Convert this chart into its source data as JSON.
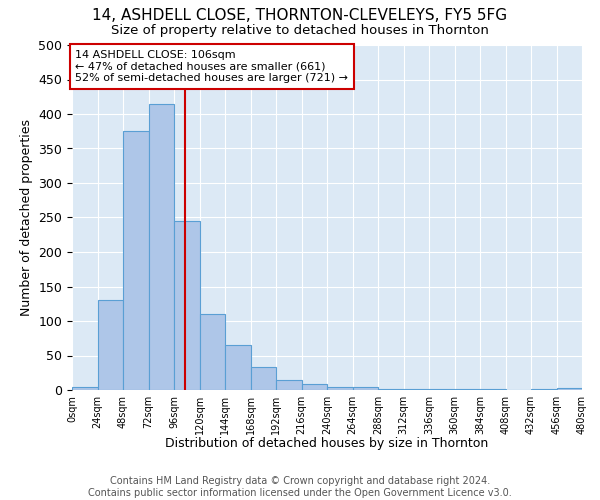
{
  "title": "14, ASHDELL CLOSE, THORNTON-CLEVELEYS, FY5 5FG",
  "subtitle": "Size of property relative to detached houses in Thornton",
  "xlabel": "Distribution of detached houses by size in Thornton",
  "ylabel": "Number of detached properties",
  "bin_edges": [
    0,
    24,
    48,
    72,
    96,
    120,
    144,
    168,
    192,
    216,
    240,
    264,
    288,
    312,
    336,
    360,
    384,
    408,
    432,
    456,
    480
  ],
  "bar_heights": [
    5,
    130,
    375,
    415,
    245,
    110,
    65,
    33,
    15,
    8,
    5,
    4,
    2,
    1,
    1,
    1,
    1,
    0,
    1,
    3
  ],
  "bar_color": "#aec6e8",
  "bar_edge_color": "#5a9fd4",
  "vline_x": 106,
  "vline_color": "#cc0000",
  "annotation_text": "14 ASHDELL CLOSE: 106sqm\n← 47% of detached houses are smaller (661)\n52% of semi-detached houses are larger (721) →",
  "annotation_box_color": "#ffffff",
  "annotation_box_edge": "#cc0000",
  "tick_labels": [
    "0sqm",
    "24sqm",
    "48sqm",
    "72sqm",
    "96sqm",
    "120sqm",
    "144sqm",
    "168sqm",
    "192sqm",
    "216sqm",
    "240sqm",
    "264sqm",
    "288sqm",
    "312sqm",
    "336sqm",
    "360sqm",
    "384sqm",
    "408sqm",
    "432sqm",
    "456sqm",
    "480sqm"
  ],
  "ylim": [
    0,
    500
  ],
  "yticks": [
    0,
    50,
    100,
    150,
    200,
    250,
    300,
    350,
    400,
    450,
    500
  ],
  "background_color": "#dce9f5",
  "footer_text": "Contains HM Land Registry data © Crown copyright and database right 2024.\nContains public sector information licensed under the Open Government Licence v3.0.",
  "title_fontsize": 11,
  "subtitle_fontsize": 9.5,
  "xlabel_fontsize": 9,
  "ylabel_fontsize": 9,
  "footer_fontsize": 7
}
